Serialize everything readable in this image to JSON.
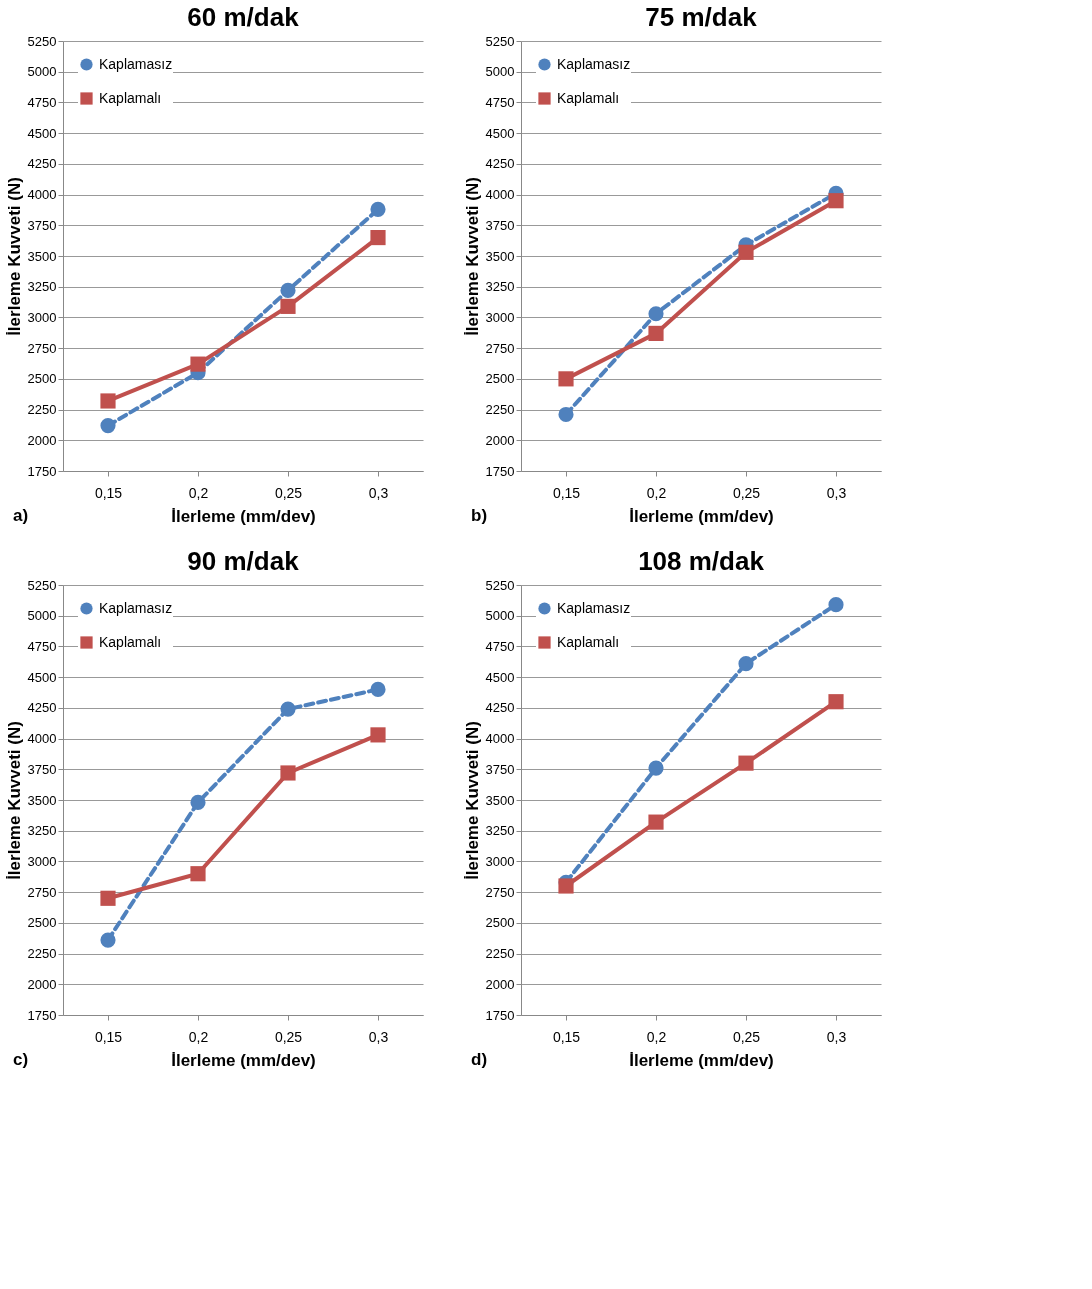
{
  "chart_data": [
    {
      "type": "line",
      "title": "60 m/dak",
      "xlabel": "İlerleme (mm/dev)",
      "ylabel": "İlerleme Kuvveti (N)",
      "categories": [
        "0,15",
        "0,2",
        "0,25",
        "0,3"
      ],
      "ylim": [
        1750,
        5250
      ],
      "yticks": [
        1750,
        2000,
        2250,
        2500,
        2750,
        3000,
        3250,
        3500,
        3750,
        4000,
        4250,
        4500,
        4750,
        5000,
        5250
      ],
      "grid": "y",
      "legend": "top left",
      "annotations": [
        "a)"
      ],
      "series": [
        {
          "name": "Kaplamasız",
          "color": "#4f81bd",
          "marker": "circle",
          "line_style": "dashed",
          "values": [
            2120,
            2550,
            3220,
            3880
          ]
        },
        {
          "name": "Kaplamalı",
          "color": "#c0504d",
          "marker": "square",
          "line_style": "solid",
          "values": [
            2320,
            2620,
            3090,
            3650
          ]
        }
      ]
    },
    {
      "type": "line",
      "title": "75 m/dak",
      "xlabel": "İlerleme (mm/dev)",
      "ylabel": "İlerleme Kuvveti (N)",
      "categories": [
        "0,15",
        "0,2",
        "0,25",
        "0,3"
      ],
      "ylim": [
        1750,
        5250
      ],
      "yticks": [
        1750,
        2000,
        2250,
        2500,
        2750,
        3000,
        3250,
        3500,
        3750,
        4000,
        4250,
        4500,
        4750,
        5000,
        5250
      ],
      "grid": "y",
      "legend": "top left",
      "annotations": [
        "b)"
      ],
      "series": [
        {
          "name": "Kaplamasız",
          "color": "#4f81bd",
          "marker": "circle",
          "line_style": "dashed",
          "values": [
            2210,
            3030,
            3590,
            4010
          ]
        },
        {
          "name": "Kaplamalı",
          "color": "#c0504d",
          "marker": "square",
          "line_style": "solid",
          "values": [
            2500,
            2870,
            3530,
            3950
          ]
        }
      ]
    },
    {
      "type": "line",
      "title": "90 m/dak",
      "xlabel": "İlerleme (mm/dev)",
      "ylabel": "İlerleme Kuvveti (N)",
      "categories": [
        "0,15",
        "0,2",
        "0,25",
        "0,3"
      ],
      "ylim": [
        1750,
        5250
      ],
      "yticks": [
        1750,
        2000,
        2250,
        2500,
        2750,
        3000,
        3250,
        3500,
        3750,
        4000,
        4250,
        4500,
        4750,
        5000,
        5250
      ],
      "grid": "y",
      "legend": "top left",
      "annotations": [
        "c)"
      ],
      "series": [
        {
          "name": "Kaplamasız",
          "color": "#4f81bd",
          "marker": "circle",
          "line_style": "dashed",
          "values": [
            2360,
            3480,
            4240,
            4400
          ]
        },
        {
          "name": "Kaplamalı",
          "color": "#c0504d",
          "marker": "square",
          "line_style": "solid",
          "values": [
            2700,
            2900,
            3720,
            4030
          ]
        }
      ]
    },
    {
      "type": "line",
      "title": "108 m/dak",
      "xlabel": "İlerleme (mm/dev)",
      "ylabel": "İlerleme Kuvveti (N)",
      "categories": [
        "0,15",
        "0,2",
        "0,25",
        "0,3"
      ],
      "ylim": [
        1750,
        5250
      ],
      "yticks": [
        1750,
        2000,
        2250,
        2500,
        2750,
        3000,
        3250,
        3500,
        3750,
        4000,
        4250,
        4500,
        4750,
        5000,
        5250
      ],
      "grid": "y",
      "legend": "top left",
      "annotations": [
        "d)"
      ],
      "series": [
        {
          "name": "Kaplamasız",
          "color": "#4f81bd",
          "marker": "circle",
          "line_style": "dashed",
          "values": [
            2830,
            3760,
            4610,
            5090
          ]
        },
        {
          "name": "Kaplamalı",
          "color": "#c0504d",
          "marker": "square",
          "line_style": "solid",
          "values": [
            2800,
            3320,
            3800,
            4300
          ]
        }
      ]
    }
  ]
}
